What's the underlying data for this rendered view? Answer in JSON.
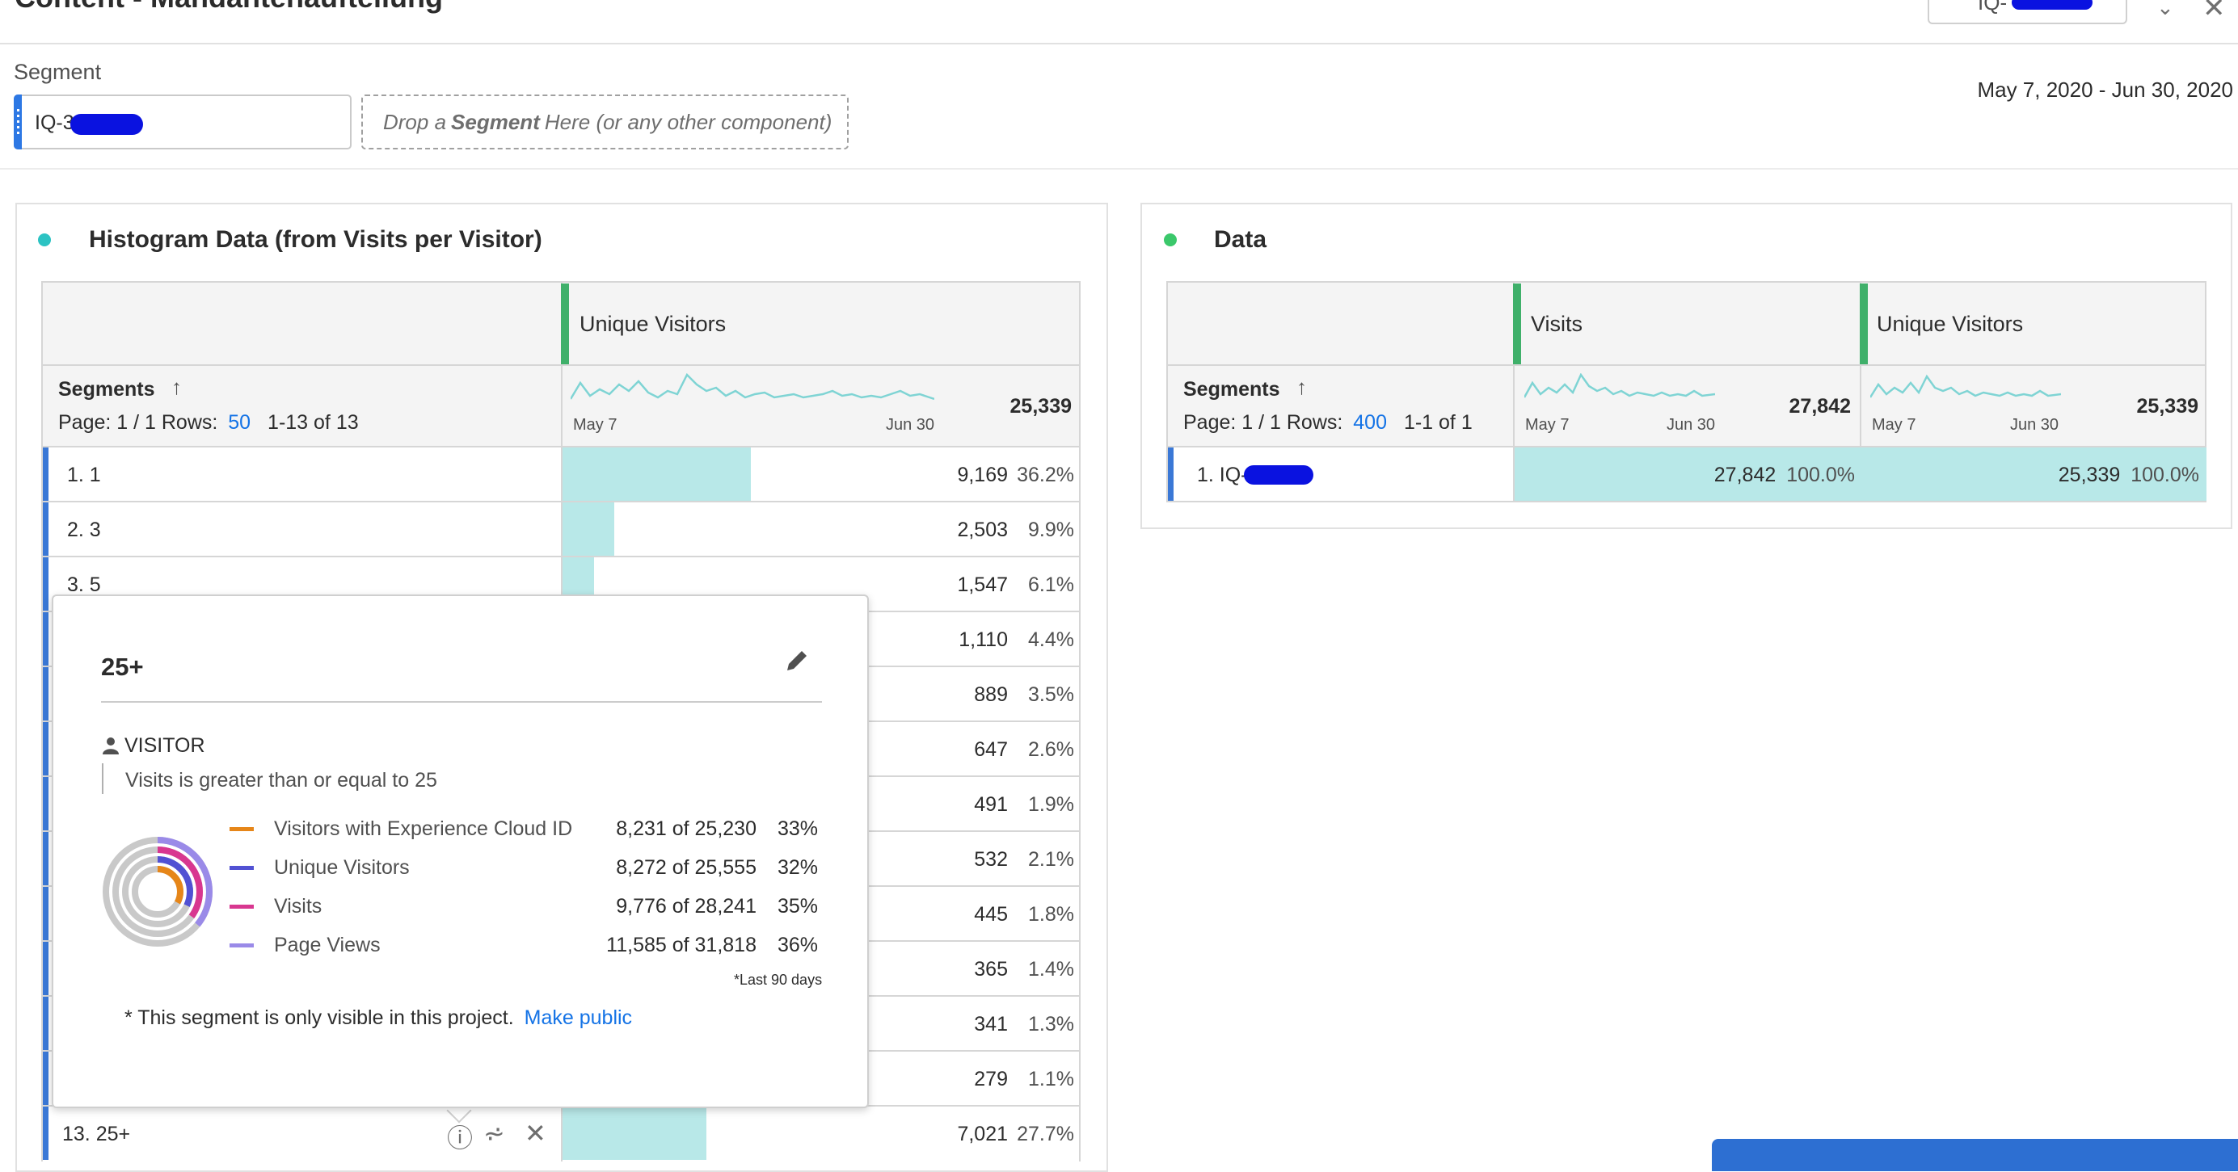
{
  "header": {
    "title": "Content - Mandantenaufteilung",
    "segment_chip": "IQ-"
  },
  "segment_bar": {
    "label": "Segment",
    "applied_segment": "IQ-3",
    "drop_prefix": "Drop a ",
    "drop_bold": "Segment",
    "drop_suffix": " Here (or any other component)",
    "date_range": "May 7, 2020 - Jun 30, 2020"
  },
  "left_panel": {
    "title": "Histogram Data (from Visits per Visitor)",
    "dot_color": "#2cc3c3",
    "metric": "Unique Visitors",
    "dimension": "Segments",
    "page_text": "Page: 1 / 1  Rows:",
    "rows_value": "50",
    "range_text": "1-13 of 13",
    "spark_start": "May 7",
    "spark_end": "Jun 30",
    "total": "25,339",
    "rows": [
      {
        "label": "1. 1",
        "value": "9,169",
        "pct": "36.2%",
        "share": 0.362
      },
      {
        "label": "2. 3",
        "value": "2,503",
        "pct": "9.9%",
        "share": 0.099
      },
      {
        "label": "3. 5",
        "value": "1,547",
        "pct": "6.1%",
        "share": 0.061
      },
      {
        "label": "",
        "value": "1,110",
        "pct": "4.4%",
        "share": 0.044
      },
      {
        "label": "",
        "value": "889",
        "pct": "3.5%",
        "share": 0.035
      },
      {
        "label": "",
        "value": "647",
        "pct": "2.6%",
        "share": 0.026
      },
      {
        "label": "",
        "value": "491",
        "pct": "1.9%",
        "share": 0.019
      },
      {
        "label": "",
        "value": "532",
        "pct": "2.1%",
        "share": 0.021
      },
      {
        "label": "",
        "value": "445",
        "pct": "1.8%",
        "share": 0.018
      },
      {
        "label": "",
        "value": "365",
        "pct": "1.4%",
        "share": 0.014
      },
      {
        "label": "",
        "value": "341",
        "pct": "1.3%",
        "share": 0.013
      },
      {
        "label": "",
        "value": "279",
        "pct": "1.1%",
        "share": 0.011
      },
      {
        "label": "13. 25+",
        "value": "7,021",
        "pct": "27.7%",
        "share": 0.277
      }
    ]
  },
  "popup": {
    "title": "25+",
    "container": "VISITOR",
    "rule": "Visits is greater than or equal to 25",
    "metrics": [
      {
        "name": "Visitors with Experience Cloud ID",
        "value": "8,231 of 25,230",
        "pct": "33%",
        "color": "#e68619",
        "share": 0.33
      },
      {
        "name": "Unique Visitors",
        "value": "8,272 of 25,555",
        "pct": "32%",
        "color": "#5151d3",
        "share": 0.32
      },
      {
        "name": "Visits",
        "value": "9,776 of 28,241",
        "pct": "35%",
        "color": "#d83790",
        "share": 0.35
      },
      {
        "name": "Page Views",
        "value": "11,585 of 31,818",
        "pct": "36%",
        "color": "#9a8ae8",
        "share": 0.36
      }
    ],
    "footnote": "*Last 90 days",
    "visibility_note": "* This segment is only visible in this project.",
    "make_public": "Make public"
  },
  "right_panel": {
    "title": "Data",
    "dot_color": "#3bc86b",
    "metrics": [
      "Visits",
      "Unique Visitors"
    ],
    "dimension": "Segments",
    "page_text": "Page: 1 / 1  Rows:",
    "rows_value": "400",
    "range_text": "1-1 of 1",
    "spark_start": "May 7",
    "spark_end": "Jun 30",
    "totals": [
      "27,842",
      "25,339"
    ],
    "row": {
      "label": "1. IQ-",
      "visits": "27,842",
      "visits_pct": "100.0%",
      "uv": "25,339",
      "uv_pct": "100.0%"
    }
  }
}
